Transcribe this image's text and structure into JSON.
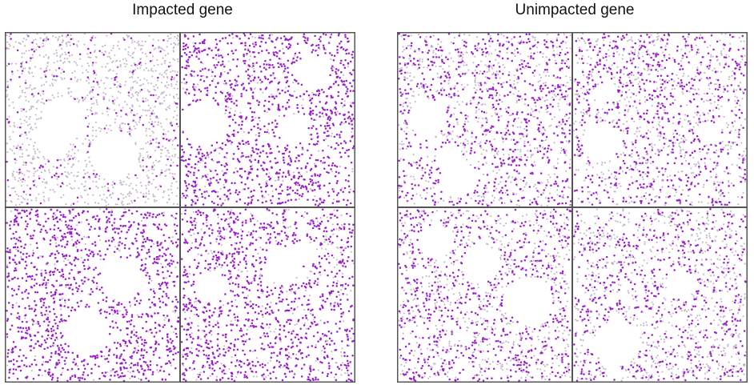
{
  "panels": [
    {
      "id": "impacted",
      "title": "Impacted gene",
      "quadrants": [
        {
          "position": "top-left",
          "expression_level": 0.15
        },
        {
          "position": "top-right",
          "expression_level": 0.85
        },
        {
          "position": "bottom-left",
          "expression_level": 0.9
        },
        {
          "position": "bottom-right",
          "expression_level": 0.8
        }
      ]
    },
    {
      "id": "unimpacted",
      "title": "Unimpacted gene",
      "quadrants": [
        {
          "position": "top-left",
          "expression_level": 0.55
        },
        {
          "position": "top-right",
          "expression_level": 0.5
        },
        {
          "position": "bottom-left",
          "expression_level": 0.55
        },
        {
          "position": "bottom-right",
          "expression_level": 0.45
        }
      ]
    }
  ],
  "colors": {
    "high_expression": "#9A1FC9",
    "low_expression": "#C2B6C8",
    "frame": "#555555"
  }
}
